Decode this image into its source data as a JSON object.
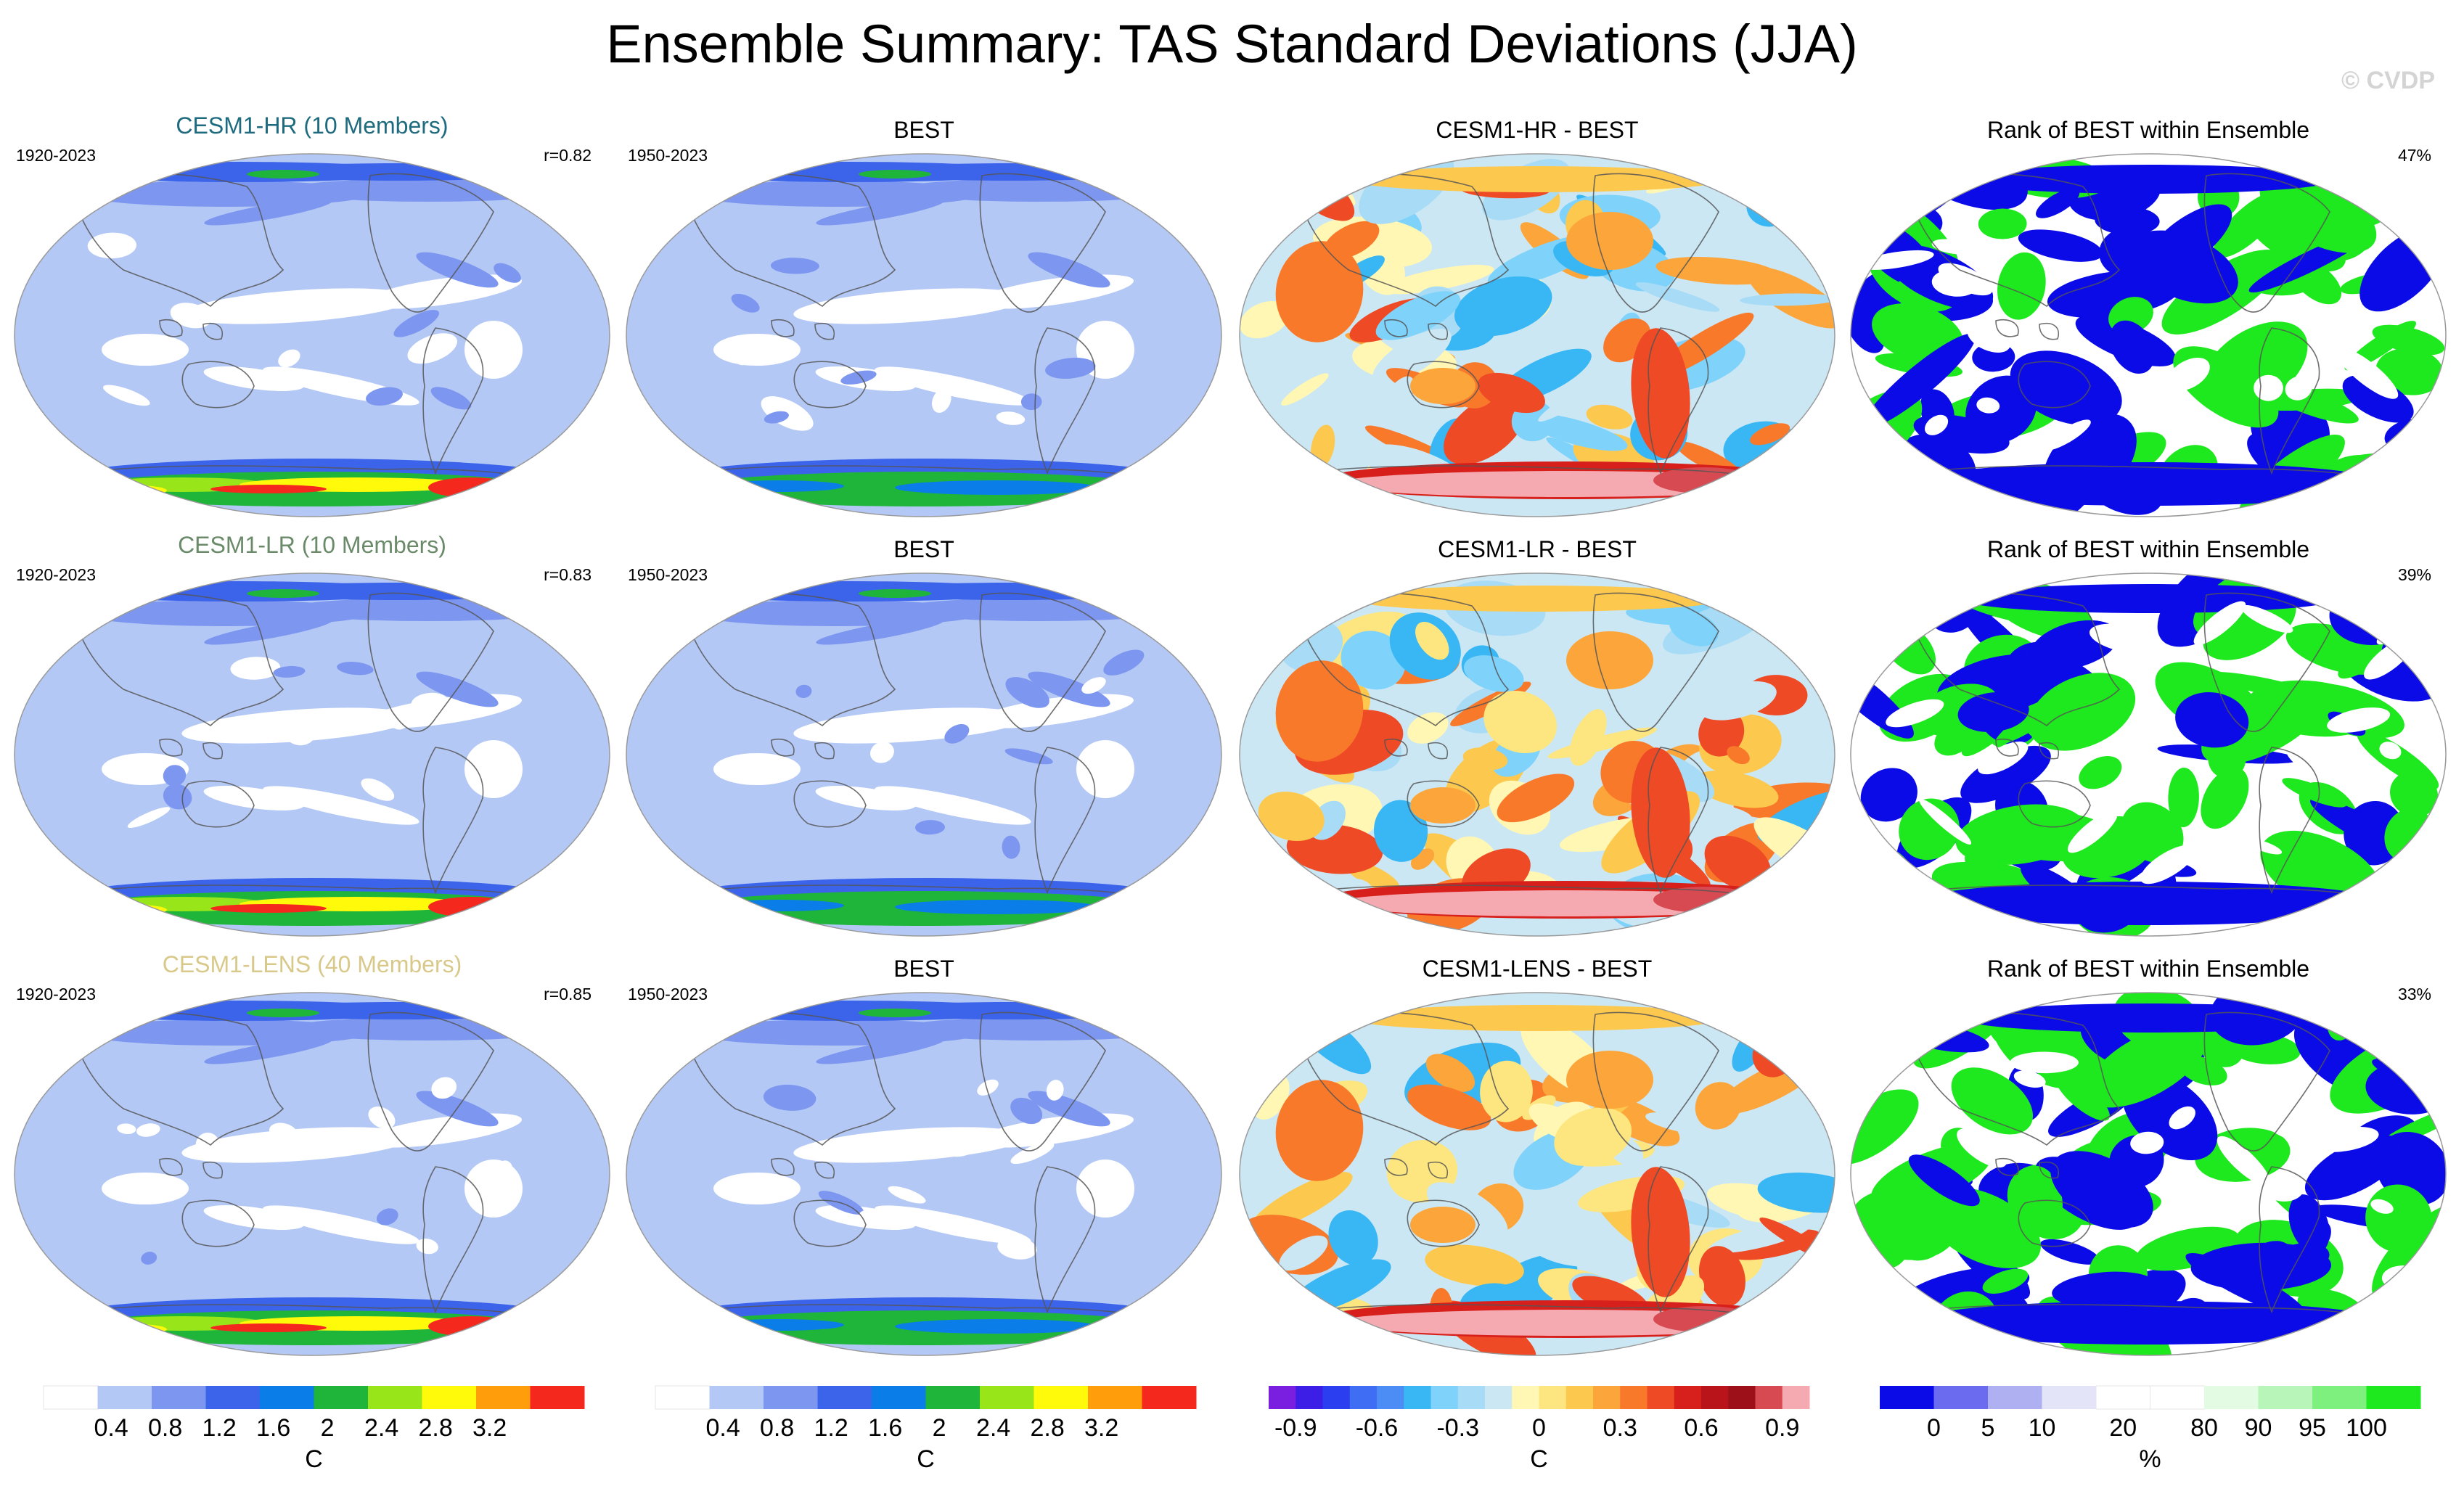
{
  "title": "Ensemble Summary: TAS Standard Deviations (JJA)",
  "watermark": "© CVDP",
  "chart_data": {
    "type": "heatmap",
    "description_source": "CVDP ensemble summary maps",
    "rows": [
      {
        "ensemble_title": "CESM1-HR (10 Members)",
        "ensemble_color": "#1e6b80",
        "model_years": "1920-2023",
        "pattern_corr": "r=0.82",
        "obs_title": "BEST",
        "obs_years": "1950-2023",
        "diff_title": "CESM1-HR - BEST",
        "rank_title": "Rank of BEST within Ensemble",
        "rank_pct": "47%"
      },
      {
        "ensemble_title": "CESM1-LR (10 Members)",
        "ensemble_color": "#6a8a6a",
        "model_years": "1920-2023",
        "pattern_corr": "r=0.83",
        "obs_title": "BEST",
        "obs_years": "1950-2023",
        "diff_title": "CESM1-LR - BEST",
        "rank_title": "Rank of BEST within Ensemble",
        "rank_pct": "39%"
      },
      {
        "ensemble_title": "CESM1-LENS (40 Members)",
        "ensemble_color": "#d8c98a",
        "model_years": "1920-2023",
        "pattern_corr": "r=0.85",
        "obs_title": "BEST",
        "obs_years": "1950-2023",
        "diff_title": "CESM1-LENS - BEST",
        "rank_title": "Rank of BEST within Ensemble",
        "rank_pct": "33%"
      }
    ],
    "colorbars": [
      {
        "name": "stddev-model",
        "unit": "C",
        "colors": [
          "#ffffff",
          "#b4c8f5",
          "#7d97f0",
          "#3c64eb",
          "#0a7de8",
          "#1fb53a",
          "#98e61a",
          "#fffa0a",
          "#ff9e0a",
          "#f5281e"
        ],
        "tick_labels": [
          "0.4",
          "0.8",
          "1.2",
          "1.6",
          "2",
          "2.4",
          "2.8",
          "3.2"
        ]
      },
      {
        "name": "stddev-obs",
        "unit": "C",
        "colors": [
          "#ffffff",
          "#b4c8f5",
          "#7d97f0",
          "#3c64eb",
          "#0a7de8",
          "#1fb53a",
          "#98e61a",
          "#fffa0a",
          "#ff9e0a",
          "#f5281e"
        ],
        "tick_labels": [
          "0.4",
          "0.8",
          "1.2",
          "1.6",
          "2",
          "2.4",
          "2.8",
          "3.2"
        ]
      },
      {
        "name": "difference",
        "unit": "C",
        "colors": [
          "#7a1fe0",
          "#3c1ee6",
          "#2b3ff0",
          "#3f6ef5",
          "#4b8df5",
          "#39b7f5",
          "#7fd3fb",
          "#a8dbf5",
          "#cce7f4",
          "#fff7b3",
          "#fde680",
          "#fdc84e",
          "#fca53a",
          "#f9792b",
          "#ee4a25",
          "#d7201b",
          "#b8141a",
          "#9e1019",
          "#d84a52",
          "#f5a9b0"
        ],
        "tick_labels": [
          "-0.9",
          "-0.6",
          "-0.3",
          "0",
          "0.3",
          "0.6",
          "0.9"
        ]
      },
      {
        "name": "rank",
        "unit": "%",
        "colors": [
          "#0b0be8",
          "#6b6bf0",
          "#aeb0f2",
          "#e4e4f8",
          "#ffffff",
          "#ffffff",
          "#e2fbe2",
          "#b8f5b8",
          "#7ef07e",
          "#1ee81e"
        ],
        "tick_labels": [
          "0",
          "5",
          "10",
          "20",
          "80",
          "90",
          "95",
          "100"
        ]
      }
    ]
  }
}
